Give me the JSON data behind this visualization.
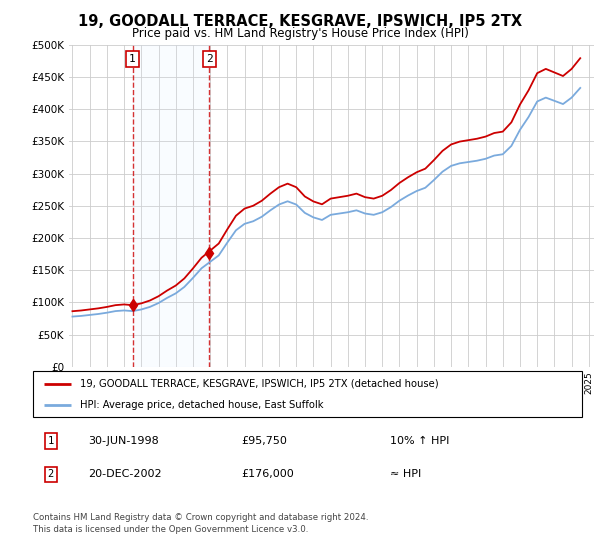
{
  "title": "19, GOODALL TERRACE, KESGRAVE, IPSWICH, IP5 2TX",
  "subtitle": "Price paid vs. HM Land Registry's House Price Index (HPI)",
  "hpi_color": "#7aaadd",
  "price_color": "#cc0000",
  "sale1_date": 1998.49,
  "sale1_price": 95750,
  "sale2_date": 2002.96,
  "sale2_price": 176000,
  "legend_label1": "19, GOODALL TERRACE, KESGRAVE, IPSWICH, IP5 2TX (detached house)",
  "legend_label2": "HPI: Average price, detached house, East Suffolk",
  "table_row1": [
    "1",
    "30-JUN-1998",
    "£95,750",
    "10% ↑ HPI"
  ],
  "table_row2": [
    "2",
    "20-DEC-2002",
    "£176,000",
    "≈ HPI"
  ],
  "footnote1": "Contains HM Land Registry data © Crown copyright and database right 2024.",
  "footnote2": "This data is licensed under the Open Government Licence v3.0.",
  "ylim": [
    0,
    500000
  ],
  "xlim_start": 1994.8,
  "xlim_end": 2025.3,
  "background_color": "#ffffff",
  "grid_color": "#cccccc",
  "shade_color": "#ddeeff",
  "years": [
    1995.0,
    1995.5,
    1996.0,
    1996.5,
    1997.0,
    1997.5,
    1998.0,
    1998.5,
    1999.0,
    1999.5,
    2000.0,
    2000.5,
    2001.0,
    2001.5,
    2002.0,
    2002.5,
    2003.0,
    2003.5,
    2004.0,
    2004.5,
    2005.0,
    2005.5,
    2006.0,
    2006.5,
    2007.0,
    2007.5,
    2008.0,
    2008.5,
    2009.0,
    2009.5,
    2010.0,
    2010.5,
    2011.0,
    2011.5,
    2012.0,
    2012.5,
    2013.0,
    2013.5,
    2014.0,
    2014.5,
    2015.0,
    2015.5,
    2016.0,
    2016.5,
    2017.0,
    2017.5,
    2018.0,
    2018.5,
    2019.0,
    2019.5,
    2020.0,
    2020.5,
    2021.0,
    2021.5,
    2022.0,
    2022.5,
    2023.0,
    2023.5,
    2024.0,
    2024.5
  ],
  "hpi_values": [
    78000,
    79000,
    80500,
    82000,
    84000,
    86500,
    87500,
    86500,
    89000,
    93000,
    99000,
    107000,
    114000,
    124000,
    138000,
    153000,
    163000,
    173000,
    193000,
    212000,
    222000,
    226000,
    233000,
    243000,
    252000,
    257000,
    252000,
    239000,
    232000,
    228000,
    236000,
    238000,
    240000,
    243000,
    238000,
    236000,
    240000,
    248000,
    258000,
    266000,
    273000,
    278000,
    290000,
    303000,
    312000,
    316000,
    318000,
    320000,
    323000,
    328000,
    330000,
    343000,
    368000,
    388000,
    412000,
    418000,
    413000,
    408000,
    418000,
    433000
  ]
}
